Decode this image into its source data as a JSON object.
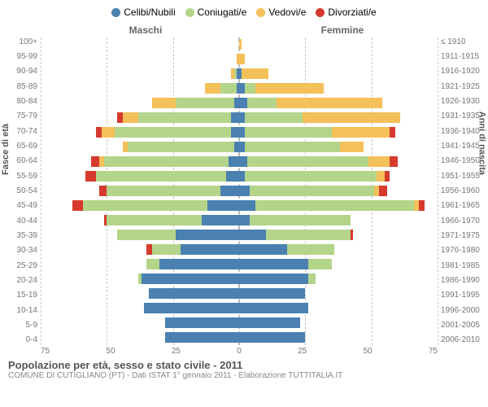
{
  "legend": {
    "items": [
      {
        "label": "Celibi/Nubili",
        "color": "#4a81b0"
      },
      {
        "label": "Coniugati/e",
        "color": "#b4d48a"
      },
      {
        "label": "Vedovi/e",
        "color": "#f4c05a"
      },
      {
        "label": "Divorziati/e",
        "color": "#d63a2d"
      }
    ]
  },
  "gender": {
    "male": "Maschi",
    "female": "Femmine"
  },
  "axis": {
    "left_title": "Fasce di età",
    "right_title": "Anni di nascita",
    "max": 75,
    "ticks": [
      75,
      50,
      25,
      0,
      25,
      50,
      75
    ],
    "grid_color": "#c5c5c5",
    "center_color": "#b8b8b8"
  },
  "age_groups": [
    "100+",
    "95-99",
    "90-94",
    "85-89",
    "80-84",
    "75-79",
    "70-74",
    "65-69",
    "60-64",
    "55-59",
    "50-54",
    "45-49",
    "40-44",
    "35-39",
    "30-34",
    "25-29",
    "20-24",
    "15-19",
    "10-14",
    "5-9",
    "0-4"
  ],
  "birth_years": [
    "≤ 1910",
    "1911-1915",
    "1916-1920",
    "1921-1925",
    "1926-1930",
    "1931-1935",
    "1936-1940",
    "1941-1945",
    "1946-1950",
    "1951-1955",
    "1956-1960",
    "1961-1965",
    "1966-1970",
    "1971-1975",
    "1976-1980",
    "1981-1985",
    "1986-1990",
    "1991-1995",
    "1996-2000",
    "2001-2005",
    "2006-2010"
  ],
  "colors": {
    "single": "#4a81b0",
    "married": "#b4d48a",
    "widowed": "#f4c05a",
    "divorced": "#d63a2d",
    "background": "#ffffff",
    "tick_text": "#777777"
  },
  "series": {
    "male": [
      {
        "single": 0,
        "married": 0,
        "widowed": 0,
        "divorced": 0
      },
      {
        "single": 0,
        "married": 0,
        "widowed": 1,
        "divorced": 0
      },
      {
        "single": 1,
        "married": 1,
        "widowed": 1,
        "divorced": 0
      },
      {
        "single": 1,
        "married": 6,
        "widowed": 6,
        "divorced": 0
      },
      {
        "single": 2,
        "married": 22,
        "widowed": 9,
        "divorced": 0
      },
      {
        "single": 3,
        "married": 35,
        "widowed": 6,
        "divorced": 2
      },
      {
        "single": 3,
        "married": 44,
        "widowed": 5,
        "divorced": 2
      },
      {
        "single": 2,
        "married": 40,
        "widowed": 2,
        "divorced": 0
      },
      {
        "single": 4,
        "married": 47,
        "widowed": 2,
        "divorced": 3
      },
      {
        "single": 5,
        "married": 49,
        "widowed": 0,
        "divorced": 4
      },
      {
        "single": 7,
        "married": 43,
        "widowed": 0,
        "divorced": 3
      },
      {
        "single": 12,
        "married": 47,
        "widowed": 0,
        "divorced": 4
      },
      {
        "single": 14,
        "married": 36,
        "widowed": 0,
        "divorced": 1
      },
      {
        "single": 24,
        "married": 22,
        "widowed": 0,
        "divorced": 0
      },
      {
        "single": 22,
        "married": 11,
        "widowed": 0,
        "divorced": 2
      },
      {
        "single": 30,
        "married": 5,
        "widowed": 0,
        "divorced": 0
      },
      {
        "single": 37,
        "married": 1,
        "widowed": 0,
        "divorced": 0
      },
      {
        "single": 34,
        "married": 0,
        "widowed": 0,
        "divorced": 0
      },
      {
        "single": 36,
        "married": 0,
        "widowed": 0,
        "divorced": 0
      },
      {
        "single": 28,
        "married": 0,
        "widowed": 0,
        "divorced": 0
      },
      {
        "single": 28,
        "married": 0,
        "widowed": 0,
        "divorced": 0
      }
    ],
    "female": [
      {
        "single": 0,
        "married": 0,
        "widowed": 1,
        "divorced": 0
      },
      {
        "single": 0,
        "married": 0,
        "widowed": 2,
        "divorced": 0
      },
      {
        "single": 1,
        "married": 0,
        "widowed": 10,
        "divorced": 0
      },
      {
        "single": 2,
        "married": 4,
        "widowed": 26,
        "divorced": 0
      },
      {
        "single": 3,
        "married": 11,
        "widowed": 40,
        "divorced": 0
      },
      {
        "single": 2,
        "married": 22,
        "widowed": 37,
        "divorced": 0
      },
      {
        "single": 2,
        "married": 33,
        "widowed": 22,
        "divorced": 2
      },
      {
        "single": 2,
        "married": 36,
        "widowed": 9,
        "divorced": 0
      },
      {
        "single": 3,
        "married": 46,
        "widowed": 8,
        "divorced": 3
      },
      {
        "single": 2,
        "married": 50,
        "widowed": 3,
        "divorced": 2
      },
      {
        "single": 4,
        "married": 47,
        "widowed": 2,
        "divorced": 3
      },
      {
        "single": 6,
        "married": 60,
        "widowed": 2,
        "divorced": 2
      },
      {
        "single": 4,
        "married": 38,
        "widowed": 0,
        "divorced": 0
      },
      {
        "single": 10,
        "married": 32,
        "widowed": 0,
        "divorced": 1
      },
      {
        "single": 18,
        "married": 18,
        "widowed": 0,
        "divorced": 0
      },
      {
        "single": 26,
        "married": 9,
        "widowed": 0,
        "divorced": 0
      },
      {
        "single": 26,
        "married": 3,
        "widowed": 0,
        "divorced": 0
      },
      {
        "single": 25,
        "married": 0,
        "widowed": 0,
        "divorced": 0
      },
      {
        "single": 26,
        "married": 0,
        "widowed": 0,
        "divorced": 0
      },
      {
        "single": 23,
        "married": 0,
        "widowed": 0,
        "divorced": 0
      },
      {
        "single": 25,
        "married": 0,
        "widowed": 0,
        "divorced": 0
      }
    ]
  },
  "footer": {
    "title": "Popolazione per età, sesso e stato civile - 2011",
    "subtitle": "COMUNE DI CUTIGLIANO (PT) - Dati ISTAT 1° gennaio 2011 - Elaborazione TUTTITALIA.IT"
  }
}
